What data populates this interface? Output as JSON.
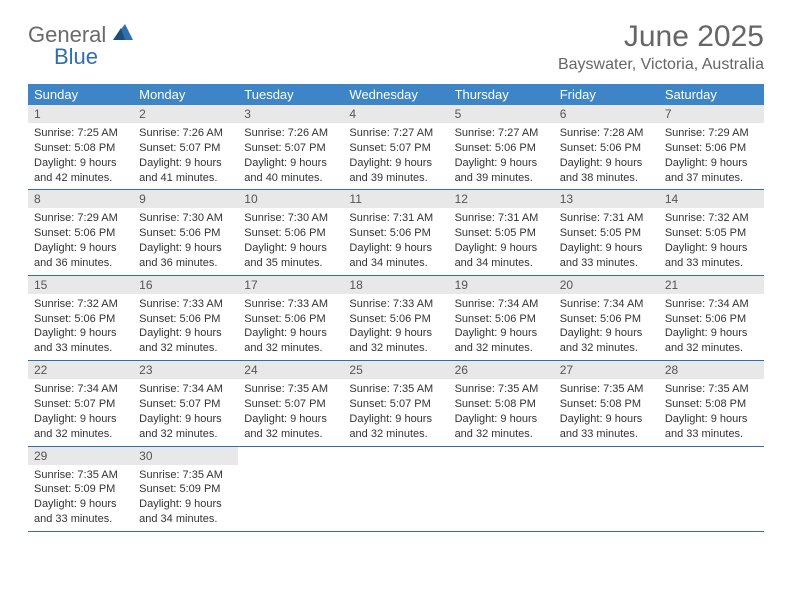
{
  "logo": {
    "text1": "General",
    "text2": "Blue"
  },
  "title": "June 2025",
  "location": "Bayswater, Victoria, Australia",
  "colors": {
    "header_bg": "#3d85c6",
    "header_text": "#ffffff",
    "daynum_bg": "#e8e8e8",
    "rule": "#2f6fb0",
    "logo_gray": "#6a6a6a",
    "logo_blue": "#2f6fb0"
  },
  "weekdays": [
    "Sunday",
    "Monday",
    "Tuesday",
    "Wednesday",
    "Thursday",
    "Friday",
    "Saturday"
  ],
  "weeks": [
    [
      {
        "num": "1",
        "sunrise": "Sunrise: 7:25 AM",
        "sunset": "Sunset: 5:08 PM",
        "day1": "Daylight: 9 hours",
        "day2": "and 42 minutes."
      },
      {
        "num": "2",
        "sunrise": "Sunrise: 7:26 AM",
        "sunset": "Sunset: 5:07 PM",
        "day1": "Daylight: 9 hours",
        "day2": "and 41 minutes."
      },
      {
        "num": "3",
        "sunrise": "Sunrise: 7:26 AM",
        "sunset": "Sunset: 5:07 PM",
        "day1": "Daylight: 9 hours",
        "day2": "and 40 minutes."
      },
      {
        "num": "4",
        "sunrise": "Sunrise: 7:27 AM",
        "sunset": "Sunset: 5:07 PM",
        "day1": "Daylight: 9 hours",
        "day2": "and 39 minutes."
      },
      {
        "num": "5",
        "sunrise": "Sunrise: 7:27 AM",
        "sunset": "Sunset: 5:06 PM",
        "day1": "Daylight: 9 hours",
        "day2": "and 39 minutes."
      },
      {
        "num": "6",
        "sunrise": "Sunrise: 7:28 AM",
        "sunset": "Sunset: 5:06 PM",
        "day1": "Daylight: 9 hours",
        "day2": "and 38 minutes."
      },
      {
        "num": "7",
        "sunrise": "Sunrise: 7:29 AM",
        "sunset": "Sunset: 5:06 PM",
        "day1": "Daylight: 9 hours",
        "day2": "and 37 minutes."
      }
    ],
    [
      {
        "num": "8",
        "sunrise": "Sunrise: 7:29 AM",
        "sunset": "Sunset: 5:06 PM",
        "day1": "Daylight: 9 hours",
        "day2": "and 36 minutes."
      },
      {
        "num": "9",
        "sunrise": "Sunrise: 7:30 AM",
        "sunset": "Sunset: 5:06 PM",
        "day1": "Daylight: 9 hours",
        "day2": "and 36 minutes."
      },
      {
        "num": "10",
        "sunrise": "Sunrise: 7:30 AM",
        "sunset": "Sunset: 5:06 PM",
        "day1": "Daylight: 9 hours",
        "day2": "and 35 minutes."
      },
      {
        "num": "11",
        "sunrise": "Sunrise: 7:31 AM",
        "sunset": "Sunset: 5:06 PM",
        "day1": "Daylight: 9 hours",
        "day2": "and 34 minutes."
      },
      {
        "num": "12",
        "sunrise": "Sunrise: 7:31 AM",
        "sunset": "Sunset: 5:05 PM",
        "day1": "Daylight: 9 hours",
        "day2": "and 34 minutes."
      },
      {
        "num": "13",
        "sunrise": "Sunrise: 7:31 AM",
        "sunset": "Sunset: 5:05 PM",
        "day1": "Daylight: 9 hours",
        "day2": "and 33 minutes."
      },
      {
        "num": "14",
        "sunrise": "Sunrise: 7:32 AM",
        "sunset": "Sunset: 5:05 PM",
        "day1": "Daylight: 9 hours",
        "day2": "and 33 minutes."
      }
    ],
    [
      {
        "num": "15",
        "sunrise": "Sunrise: 7:32 AM",
        "sunset": "Sunset: 5:06 PM",
        "day1": "Daylight: 9 hours",
        "day2": "and 33 minutes."
      },
      {
        "num": "16",
        "sunrise": "Sunrise: 7:33 AM",
        "sunset": "Sunset: 5:06 PM",
        "day1": "Daylight: 9 hours",
        "day2": "and 32 minutes."
      },
      {
        "num": "17",
        "sunrise": "Sunrise: 7:33 AM",
        "sunset": "Sunset: 5:06 PM",
        "day1": "Daylight: 9 hours",
        "day2": "and 32 minutes."
      },
      {
        "num": "18",
        "sunrise": "Sunrise: 7:33 AM",
        "sunset": "Sunset: 5:06 PM",
        "day1": "Daylight: 9 hours",
        "day2": "and 32 minutes."
      },
      {
        "num": "19",
        "sunrise": "Sunrise: 7:34 AM",
        "sunset": "Sunset: 5:06 PM",
        "day1": "Daylight: 9 hours",
        "day2": "and 32 minutes."
      },
      {
        "num": "20",
        "sunrise": "Sunrise: 7:34 AM",
        "sunset": "Sunset: 5:06 PM",
        "day1": "Daylight: 9 hours",
        "day2": "and 32 minutes."
      },
      {
        "num": "21",
        "sunrise": "Sunrise: 7:34 AM",
        "sunset": "Sunset: 5:06 PM",
        "day1": "Daylight: 9 hours",
        "day2": "and 32 minutes."
      }
    ],
    [
      {
        "num": "22",
        "sunrise": "Sunrise: 7:34 AM",
        "sunset": "Sunset: 5:07 PM",
        "day1": "Daylight: 9 hours",
        "day2": "and 32 minutes."
      },
      {
        "num": "23",
        "sunrise": "Sunrise: 7:34 AM",
        "sunset": "Sunset: 5:07 PM",
        "day1": "Daylight: 9 hours",
        "day2": "and 32 minutes."
      },
      {
        "num": "24",
        "sunrise": "Sunrise: 7:35 AM",
        "sunset": "Sunset: 5:07 PM",
        "day1": "Daylight: 9 hours",
        "day2": "and 32 minutes."
      },
      {
        "num": "25",
        "sunrise": "Sunrise: 7:35 AM",
        "sunset": "Sunset: 5:07 PM",
        "day1": "Daylight: 9 hours",
        "day2": "and 32 minutes."
      },
      {
        "num": "26",
        "sunrise": "Sunrise: 7:35 AM",
        "sunset": "Sunset: 5:08 PM",
        "day1": "Daylight: 9 hours",
        "day2": "and 32 minutes."
      },
      {
        "num": "27",
        "sunrise": "Sunrise: 7:35 AM",
        "sunset": "Sunset: 5:08 PM",
        "day1": "Daylight: 9 hours",
        "day2": "and 33 minutes."
      },
      {
        "num": "28",
        "sunrise": "Sunrise: 7:35 AM",
        "sunset": "Sunset: 5:08 PM",
        "day1": "Daylight: 9 hours",
        "day2": "and 33 minutes."
      }
    ],
    [
      {
        "num": "29",
        "sunrise": "Sunrise: 7:35 AM",
        "sunset": "Sunset: 5:09 PM",
        "day1": "Daylight: 9 hours",
        "day2": "and 33 minutes."
      },
      {
        "num": "30",
        "sunrise": "Sunrise: 7:35 AM",
        "sunset": "Sunset: 5:09 PM",
        "day1": "Daylight: 9 hours",
        "day2": "and 34 minutes."
      },
      null,
      null,
      null,
      null,
      null
    ]
  ]
}
